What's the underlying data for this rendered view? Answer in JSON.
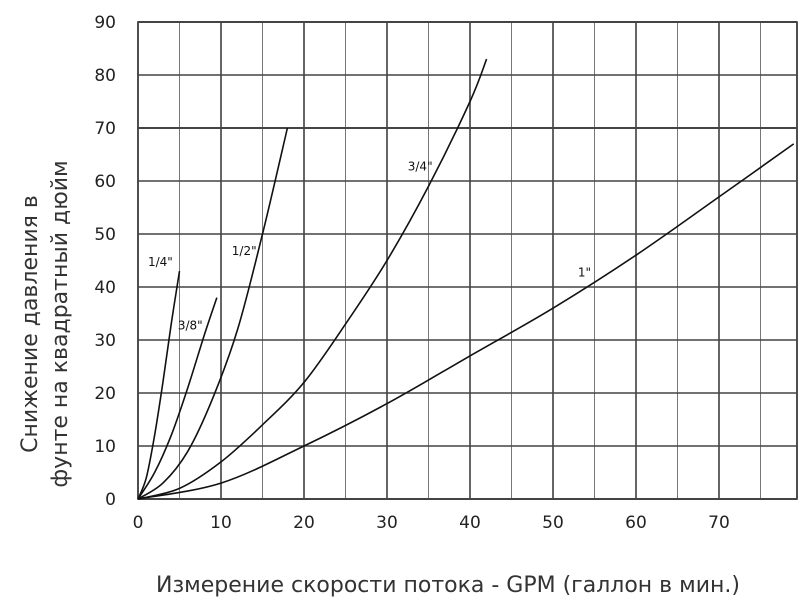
{
  "chart_data": {
    "type": "line",
    "xlabel": "Измерение скорости потока - GPM (галлон в мин.)",
    "ylabel_lines": [
      "Снижение давления в",
      "фунте на квадратный дюйм"
    ],
    "xlim": [
      0,
      80
    ],
    "ylim": [
      0,
      90
    ],
    "x_ticks": [
      0,
      10,
      20,
      30,
      40,
      50,
      60,
      70
    ],
    "y_ticks": [
      0,
      10,
      20,
      30,
      40,
      50,
      60,
      70,
      80,
      90
    ],
    "grid": true,
    "series": [
      {
        "name": "1/4\"",
        "x": [
          0,
          1,
          2,
          3,
          4,
          5
        ],
        "y": [
          0,
          4,
          12,
          22,
          33,
          43
        ],
        "label_at": [
          1.2,
          44
        ]
      },
      {
        "name": "3/8\"",
        "x": [
          0,
          2,
          4,
          6,
          8,
          9.5
        ],
        "y": [
          0,
          5,
          12,
          21,
          31,
          38
        ],
        "label_at": [
          4.8,
          32
        ]
      },
      {
        "name": "1/2\"",
        "x": [
          0,
          3,
          6,
          9,
          12,
          15,
          18
        ],
        "y": [
          0,
          3,
          9,
          19,
          32,
          50,
          70
        ],
        "label_at": [
          11.3,
          46
        ]
      },
      {
        "name": "3/4\"",
        "x": [
          0,
          5,
          10,
          15,
          20,
          25,
          30,
          35,
          40,
          42
        ],
        "y": [
          0,
          2,
          7,
          14,
          22,
          33,
          45,
          59,
          75,
          83
        ],
        "label_at": [
          32.5,
          62
        ]
      },
      {
        "name": "1\"",
        "x": [
          0,
          10,
          20,
          30,
          40,
          50,
          60,
          70,
          79
        ],
        "y": [
          0,
          3,
          10,
          18,
          27,
          36,
          46,
          57,
          67
        ],
        "label_at": [
          53,
          42
        ]
      }
    ]
  }
}
